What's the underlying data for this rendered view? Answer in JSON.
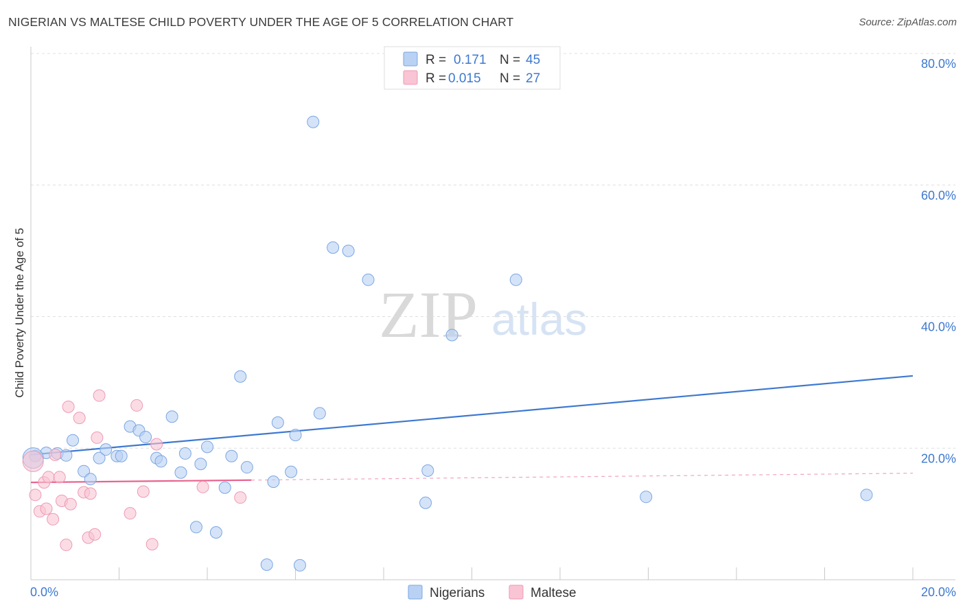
{
  "header": {
    "title": "NIGERIAN VS MALTESE CHILD POVERTY UNDER THE AGE OF 5 CORRELATION CHART",
    "source": "Source: ZipAtlas.com"
  },
  "watermark": {
    "zip": "ZIP",
    "atlas": "atlas"
  },
  "legend": {
    "r_label": "R =",
    "n_label": "N =",
    "rows": [
      {
        "r": "0.171",
        "n": "45",
        "color": "#b9d1f3"
      },
      {
        "r": "0.015",
        "n": "27",
        "color": "#f9c4d3"
      }
    ]
  },
  "bottom_legend": [
    {
      "label": "Nigerians",
      "color": "#b9d1f3"
    },
    {
      "label": "Maltese",
      "color": "#f9c4d3"
    }
  ],
  "chart_data": {
    "type": "scatter",
    "title": "NIGERIAN VS MALTESE CHILD POVERTY UNDER THE AGE OF 5 CORRELATION CHART",
    "xlabel": "",
    "ylabel": "Child Poverty Under the Age of 5",
    "xlim": [
      0,
      20
    ],
    "ylim": [
      0,
      80
    ],
    "x_tick_labels": [
      "0.0%",
      "20.0%"
    ],
    "y_tick_labels": [
      "20.0%",
      "40.0%",
      "60.0%",
      "80.0%"
    ],
    "y_ticks": [
      20,
      40,
      60,
      80
    ],
    "grid": true,
    "series": [
      {
        "name": "Nigerians",
        "color": "#3d78d0",
        "fill": "#b9d1f3",
        "points": [
          [
            0.1,
            18.8
          ],
          [
            0.35,
            19.3
          ],
          [
            0.6,
            19.2
          ],
          [
            0.8,
            18.9
          ],
          [
            0.95,
            21.2
          ],
          [
            1.2,
            16.5
          ],
          [
            1.35,
            15.3
          ],
          [
            1.55,
            18.5
          ],
          [
            1.7,
            19.8
          ],
          [
            1.95,
            18.8
          ],
          [
            2.05,
            18.8
          ],
          [
            2.25,
            23.3
          ],
          [
            2.45,
            22.7
          ],
          [
            2.6,
            21.7
          ],
          [
            2.85,
            18.5
          ],
          [
            2.95,
            18.0
          ],
          [
            3.2,
            24.8
          ],
          [
            3.4,
            16.3
          ],
          [
            3.5,
            19.2
          ],
          [
            3.75,
            8.0
          ],
          [
            3.85,
            17.6
          ],
          [
            4.0,
            20.2
          ],
          [
            4.2,
            7.2
          ],
          [
            4.4,
            14.0
          ],
          [
            4.55,
            18.8
          ],
          [
            4.75,
            30.9
          ],
          [
            4.9,
            17.1
          ],
          [
            5.35,
            2.3
          ],
          [
            5.5,
            14.9
          ],
          [
            5.6,
            23.9
          ],
          [
            5.9,
            16.4
          ],
          [
            6.0,
            22.0
          ],
          [
            6.1,
            2.2
          ],
          [
            6.4,
            69.6
          ],
          [
            6.55,
            25.3
          ],
          [
            6.85,
            50.5
          ],
          [
            7.2,
            50.0
          ],
          [
            7.65,
            45.6
          ],
          [
            8.95,
            11.7
          ],
          [
            9.0,
            16.6
          ],
          [
            9.55,
            37.2
          ],
          [
            11.0,
            45.6
          ],
          [
            13.95,
            12.6
          ],
          [
            18.95,
            12.9
          ],
          [
            0.05,
            18.5
          ]
        ],
        "trend": {
          "x": [
            0,
            20
          ],
          "y": [
            19.0,
            31.0
          ]
        }
      },
      {
        "name": "Maltese",
        "color": "#e8638e",
        "fill": "#f9c4d3",
        "points": [
          [
            0.1,
            12.9
          ],
          [
            0.2,
            10.4
          ],
          [
            0.3,
            14.8
          ],
          [
            0.35,
            10.8
          ],
          [
            0.4,
            15.6
          ],
          [
            0.5,
            9.2
          ],
          [
            0.55,
            19.0
          ],
          [
            0.65,
            15.6
          ],
          [
            0.7,
            12.0
          ],
          [
            0.8,
            5.3
          ],
          [
            0.85,
            26.3
          ],
          [
            0.9,
            11.5
          ],
          [
            1.1,
            24.6
          ],
          [
            1.2,
            13.3
          ],
          [
            1.3,
            6.4
          ],
          [
            1.35,
            13.1
          ],
          [
            1.45,
            6.9
          ],
          [
            1.5,
            21.6
          ],
          [
            1.55,
            28.0
          ],
          [
            2.25,
            10.1
          ],
          [
            2.4,
            26.5
          ],
          [
            2.55,
            13.4
          ],
          [
            2.75,
            5.4
          ],
          [
            2.85,
            20.6
          ],
          [
            3.9,
            14.1
          ],
          [
            4.75,
            12.5
          ],
          [
            0.05,
            18.0
          ]
        ],
        "trend": {
          "x": [
            0,
            20
          ],
          "y": [
            14.8,
            16.2
          ],
          "solid_until": 5.0
        }
      }
    ]
  }
}
